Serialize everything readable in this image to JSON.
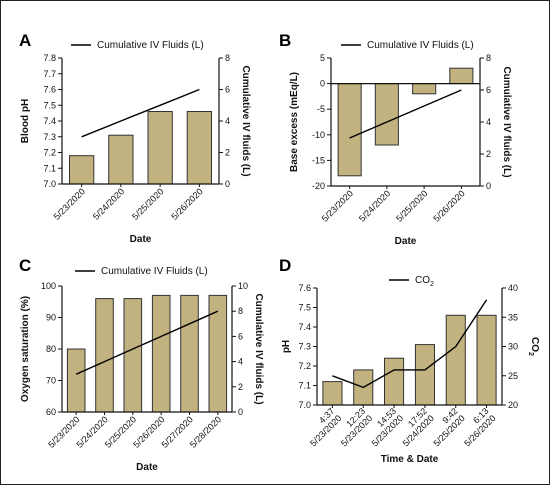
{
  "figure": {
    "bar_color": "#c2b280",
    "bar_stroke": "#333333",
    "line_color": "#000000"
  },
  "chart_data": [
    {
      "id": "A",
      "letter": "A",
      "type": "bar",
      "categories": [
        "5/23/2020",
        "5/24/2020",
        "5/25/2020",
        "5/26/2020"
      ],
      "values": [
        7.18,
        7.31,
        7.46,
        7.46
      ],
      "ylabel": "Blood pH",
      "ylim": [
        7.0,
        7.8
      ],
      "yticks": [
        "7.0",
        "7.1",
        "7.2",
        "7.3",
        "7.4",
        "7.5",
        "7.6",
        "7.7",
        "7.8"
      ],
      "xlabel": "Date",
      "y2label": "Cumulative  IV fluids (L)",
      "y2lim": [
        0,
        8
      ],
      "y2ticks": [
        "0",
        "2",
        "4",
        "6",
        "8"
      ],
      "line": {
        "name": "Cumulative IV Fluids (L)",
        "values": [
          3,
          4,
          5,
          6
        ]
      }
    },
    {
      "id": "B",
      "letter": "B",
      "type": "bar",
      "categories": [
        "5/23/2020",
        "5/24/2020",
        "5/25/2020",
        "5/26/2020"
      ],
      "values": [
        -18,
        -12,
        -2,
        3
      ],
      "ylabel": "Base excess  (mEq/L)",
      "ylim": [
        -20,
        5
      ],
      "yticks": [
        "-20",
        "-15",
        "-10",
        "-5",
        "0",
        "5"
      ],
      "xlabel": "Date",
      "y2label": "Cumulative  IV fluids (L)",
      "y2lim": [
        0,
        8
      ],
      "y2ticks": [
        "0",
        "2",
        "4",
        "6",
        "8"
      ],
      "line": {
        "name": "Cumulative IV Fluids (L)",
        "values": [
          3,
          4,
          5,
          6
        ]
      }
    },
    {
      "id": "C",
      "letter": "C",
      "type": "bar",
      "categories": [
        "5/23/2020",
        "5/24/2020",
        "5/25/2020",
        "5/26/2020",
        "5/27/2020",
        "5/28/2020"
      ],
      "values": [
        80,
        96,
        96,
        97,
        97,
        97
      ],
      "ylabel": "Oxygen  saturation (%)",
      "ylim": [
        60,
        100
      ],
      "yticks": [
        "60",
        "70",
        "80",
        "90",
        "100"
      ],
      "xlabel": "Date",
      "y2label": "Cumulative  IV fluids (L)",
      "y2lim": [
        0,
        10
      ],
      "y2ticks": [
        "0",
        "2",
        "4",
        "6",
        "8",
        "10"
      ],
      "line": {
        "name": "Cumulative IV Fluids (L)",
        "values": [
          3,
          4,
          5,
          6,
          7,
          8
        ]
      }
    },
    {
      "id": "D",
      "letter": "D",
      "type": "bar",
      "categories": [
        "4:37\n5/23/2020",
        "12:23\n5/23/2020",
        "14:53\n5/23/2020",
        "17:52\n5/24/2020",
        "9:42\n5/25/2020",
        "6:13\n5/26/2020"
      ],
      "values": [
        7.12,
        7.18,
        7.24,
        7.31,
        7.46,
        7.46
      ],
      "ylabel": "pH",
      "ylim": [
        7.0,
        7.6
      ],
      "yticks": [
        "7.0",
        "7.1",
        "7.2",
        "7.3",
        "7.4",
        "7.5",
        "7.6"
      ],
      "xlabel": "Time & Date",
      "y2label": "CO2",
      "y2lim": [
        20,
        40
      ],
      "y2ticks": [
        "20",
        "25",
        "30",
        "35",
        "40"
      ],
      "line": {
        "name": "CO2",
        "values": [
          25,
          23,
          26,
          26,
          30,
          38
        ]
      }
    }
  ]
}
